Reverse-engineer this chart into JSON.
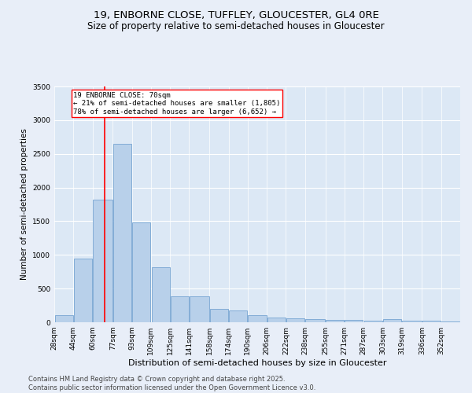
{
  "title1": "19, ENBORNE CLOSE, TUFFLEY, GLOUCESTER, GL4 0RE",
  "title2": "Size of property relative to semi-detached houses in Gloucester",
  "xlabel": "Distribution of semi-detached houses by size in Gloucester",
  "ylabel": "Number of semi-detached properties",
  "bins": [
    "28sqm",
    "44sqm",
    "60sqm",
    "77sqm",
    "93sqm",
    "109sqm",
    "125sqm",
    "141sqm",
    "158sqm",
    "174sqm",
    "190sqm",
    "206sqm",
    "222sqm",
    "238sqm",
    "255sqm",
    "271sqm",
    "287sqm",
    "303sqm",
    "319sqm",
    "336sqm",
    "352sqm"
  ],
  "bin_edges": [
    28,
    44,
    60,
    77,
    93,
    109,
    125,
    141,
    158,
    174,
    190,
    206,
    222,
    238,
    255,
    271,
    287,
    303,
    319,
    336,
    352,
    368
  ],
  "values": [
    100,
    950,
    1820,
    2650,
    1480,
    820,
    380,
    380,
    200,
    175,
    110,
    75,
    55,
    45,
    35,
    30,
    28,
    50,
    20,
    18,
    8
  ],
  "bar_color": "#b8d0ea",
  "bar_edge_color": "#6699cc",
  "bar_linewidth": 0.5,
  "property_line_x": 70,
  "property_line_color": "red",
  "annotation_text": "19 ENBORNE CLOSE: 70sqm\n← 21% of semi-detached houses are smaller (1,805)\n78% of semi-detached houses are larger (6,652) →",
  "annotation_box_color": "white",
  "annotation_box_edgecolor": "red",
  "ylim": [
    0,
    3500
  ],
  "yticks": [
    0,
    500,
    1000,
    1500,
    2000,
    2500,
    3000,
    3500
  ],
  "bg_color": "#e8eef8",
  "plot_bg_color": "#dce8f5",
  "footer1": "Contains HM Land Registry data © Crown copyright and database right 2025.",
  "footer2": "Contains public sector information licensed under the Open Government Licence v3.0.",
  "title1_fontsize": 9.5,
  "title2_fontsize": 8.5,
  "xlabel_fontsize": 8,
  "ylabel_fontsize": 7.5,
  "tick_fontsize": 6.5,
  "footer_fontsize": 6
}
